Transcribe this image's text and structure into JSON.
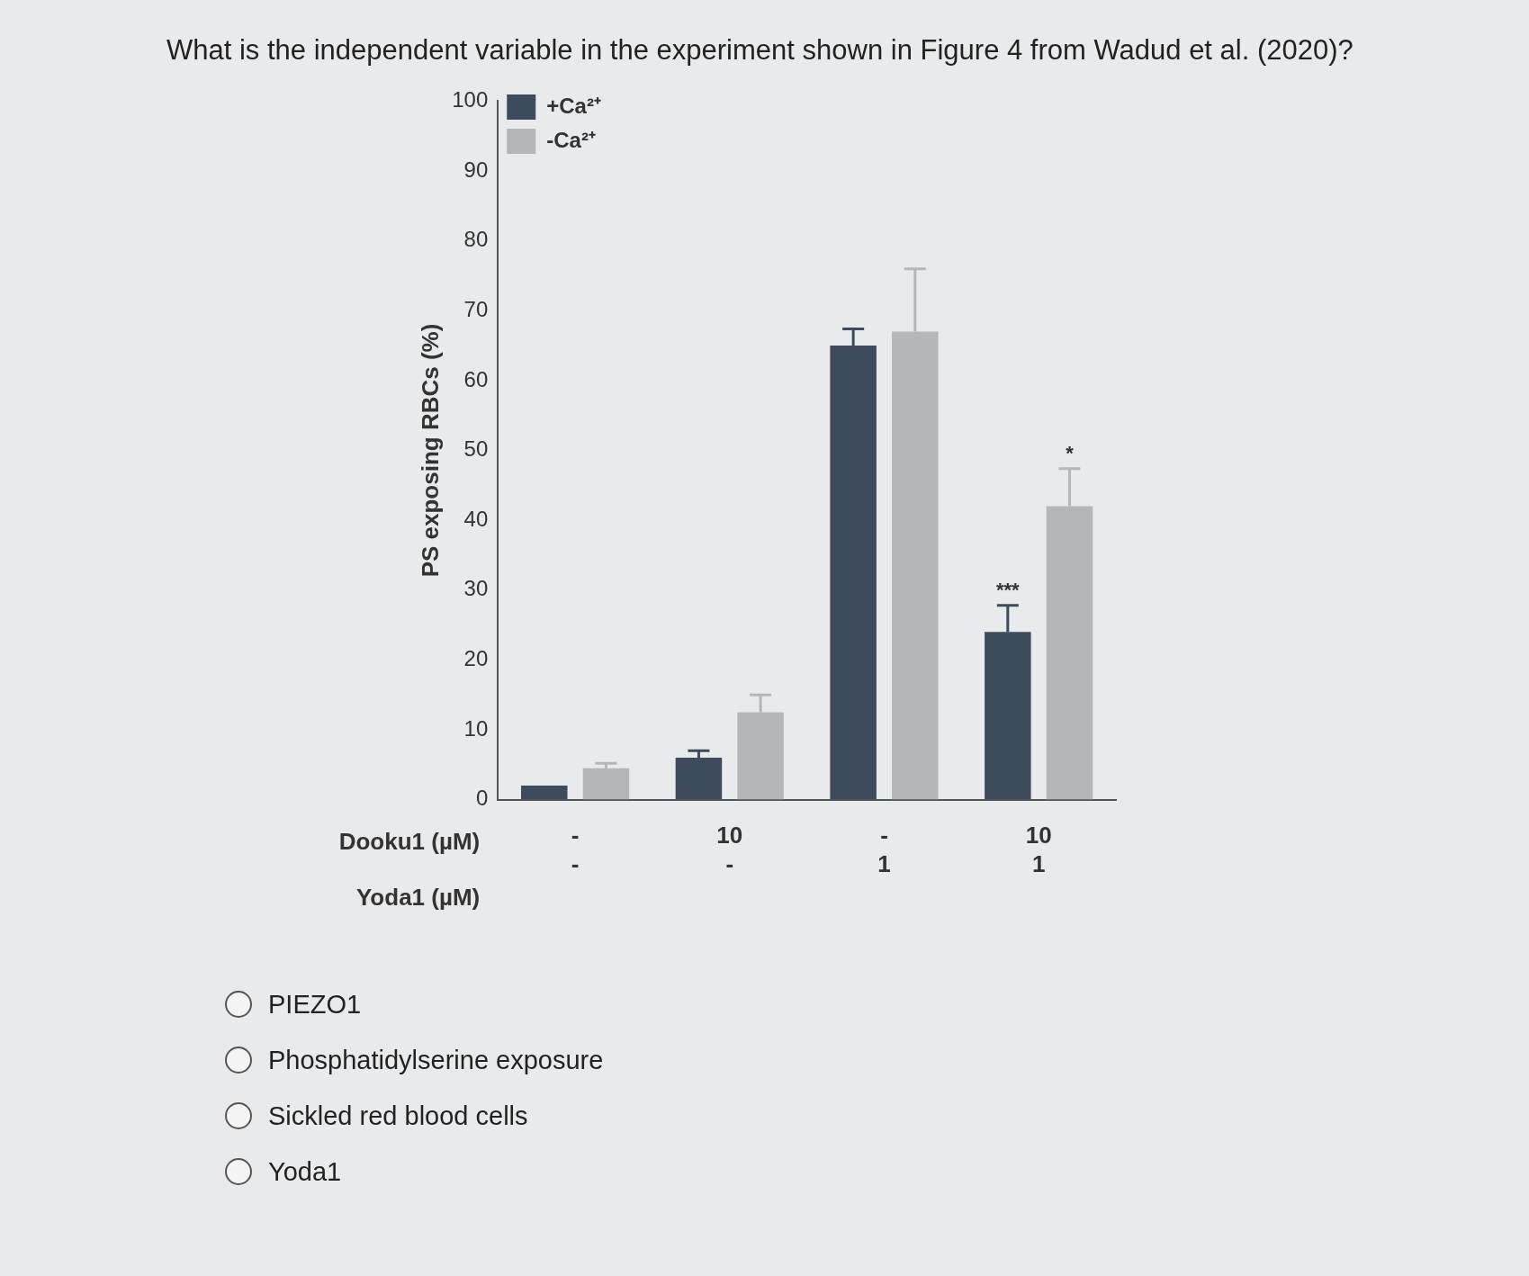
{
  "chart_data": {
    "type": "bar",
    "title": "What is the independent variable in the experiment shown in Figure 4 from Wadud et al. (2020)?",
    "categories": [
      "-\n-",
      "10\n-",
      "-\n1",
      "10\n1"
    ],
    "xlabel": "Dooku1 (µM)\nYoda1 (µM)",
    "ylabel": "PS exposing RBCs (%)",
    "series": [
      {
        "name": "+Ca²⁺",
        "color": "#3e4b5c",
        "values": [
          2,
          6,
          65,
          24
        ],
        "errors": [
          null,
          1,
          2.4,
          3.8
        ],
        "value_labels": [
          null,
          null,
          null,
          "***"
        ]
      },
      {
        "name": "-Ca²⁺",
        "color": "#b4b6b8",
        "values": [
          4.5,
          12.5,
          67,
          42
        ],
        "errors": [
          0.7,
          2.5,
          9,
          5.4
        ],
        "value_labels": [
          null,
          null,
          null,
          "*"
        ]
      }
    ],
    "ylim": [
      0,
      100
    ],
    "yticks": [
      0,
      10,
      20,
      30,
      40,
      50,
      60,
      70,
      80,
      90,
      100
    ],
    "grid": false,
    "legend": "top left",
    "annotations": [
      "PIEZO1",
      "Phosphatidylserine exposure",
      "Sickled red blood cells",
      "Yoda1"
    ]
  }
}
